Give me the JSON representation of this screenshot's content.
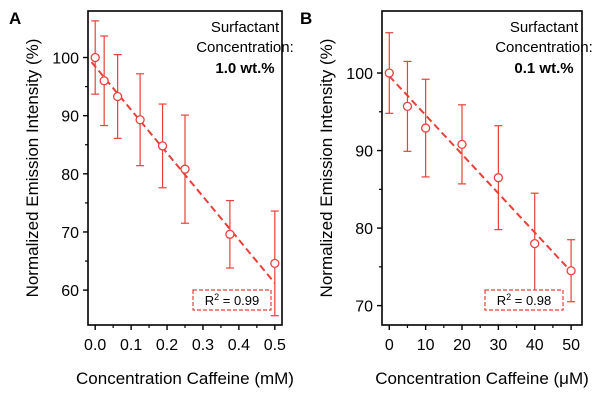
{
  "chart_data": [
    {
      "type": "scatter",
      "panel_label": "A",
      "title": "",
      "xlabel": "Concentration Caffeine (mM)",
      "ylabel": "Normalized Emission Intensity (%)",
      "xlim": [
        -0.02,
        0.52
      ],
      "ylim": [
        54,
        108
      ],
      "xticks": [
        0.0,
        0.1,
        0.2,
        0.3,
        0.4,
        0.5
      ],
      "xtick_labels": [
        "0.0",
        "0.1",
        "0.2",
        "0.3",
        "0.4",
        "0.5"
      ],
      "yticks": [
        60,
        70,
        80,
        90,
        100
      ],
      "ytick_labels": [
        "60",
        "70",
        "80",
        "90",
        "100"
      ],
      "annotation_line1": "Surfactant",
      "annotation_line2": "Concentration:",
      "annotation_bold": "1.0 wt.%",
      "r2_label": "R",
      "r2_sup": "2",
      "r2_value": " = 0.99",
      "color": "#e8403a",
      "fit_line": [
        [
          -0.01,
          99.2
        ],
        [
          0.5,
          61.2
        ]
      ],
      "series": [
        {
          "x": [
            0.0,
            0.025,
            0.0625,
            0.125,
            0.1875,
            0.25,
            0.375,
            0.5
          ],
          "y": [
            100,
            96,
            93.3,
            89.3,
            84.8,
            80.8,
            69.6,
            64.6
          ],
          "err": [
            6.3,
            7.7,
            7.2,
            7.9,
            7.2,
            9.3,
            5.8,
            9.0
          ]
        }
      ]
    },
    {
      "type": "scatter",
      "panel_label": "B",
      "title": "",
      "xlabel": "Concentration Caffeine (μM)",
      "ylabel": "Normalized Emission Intensity (%)",
      "xlim": [
        -2,
        53
      ],
      "ylim": [
        67.5,
        108
      ],
      "xticks": [
        0,
        10,
        20,
        30,
        40,
        50
      ],
      "xtick_labels": [
        "0",
        "10",
        "20",
        "30",
        "40",
        "50"
      ],
      "yticks": [
        70,
        80,
        90,
        100
      ],
      "ytick_labels": [
        "70",
        "80",
        "90",
        "100"
      ],
      "annotation_line1": "Surfactant",
      "annotation_line2": "Concentration:",
      "annotation_bold": "0.1 wt.%",
      "r2_label": "R",
      "r2_sup": "2",
      "r2_value": " = 0.98",
      "color": "#e8403a",
      "fit_line": [
        [
          0,
          99.6
        ],
        [
          50,
          74.4
        ]
      ],
      "series": [
        {
          "x": [
            0,
            5,
            10,
            20,
            30,
            40,
            50
          ],
          "y": [
            100,
            95.7,
            92.9,
            90.8,
            86.5,
            78.0,
            74.5
          ],
          "err": [
            5.2,
            5.8,
            6.3,
            5.1,
            6.7,
            6.5,
            4.0
          ]
        }
      ]
    }
  ]
}
